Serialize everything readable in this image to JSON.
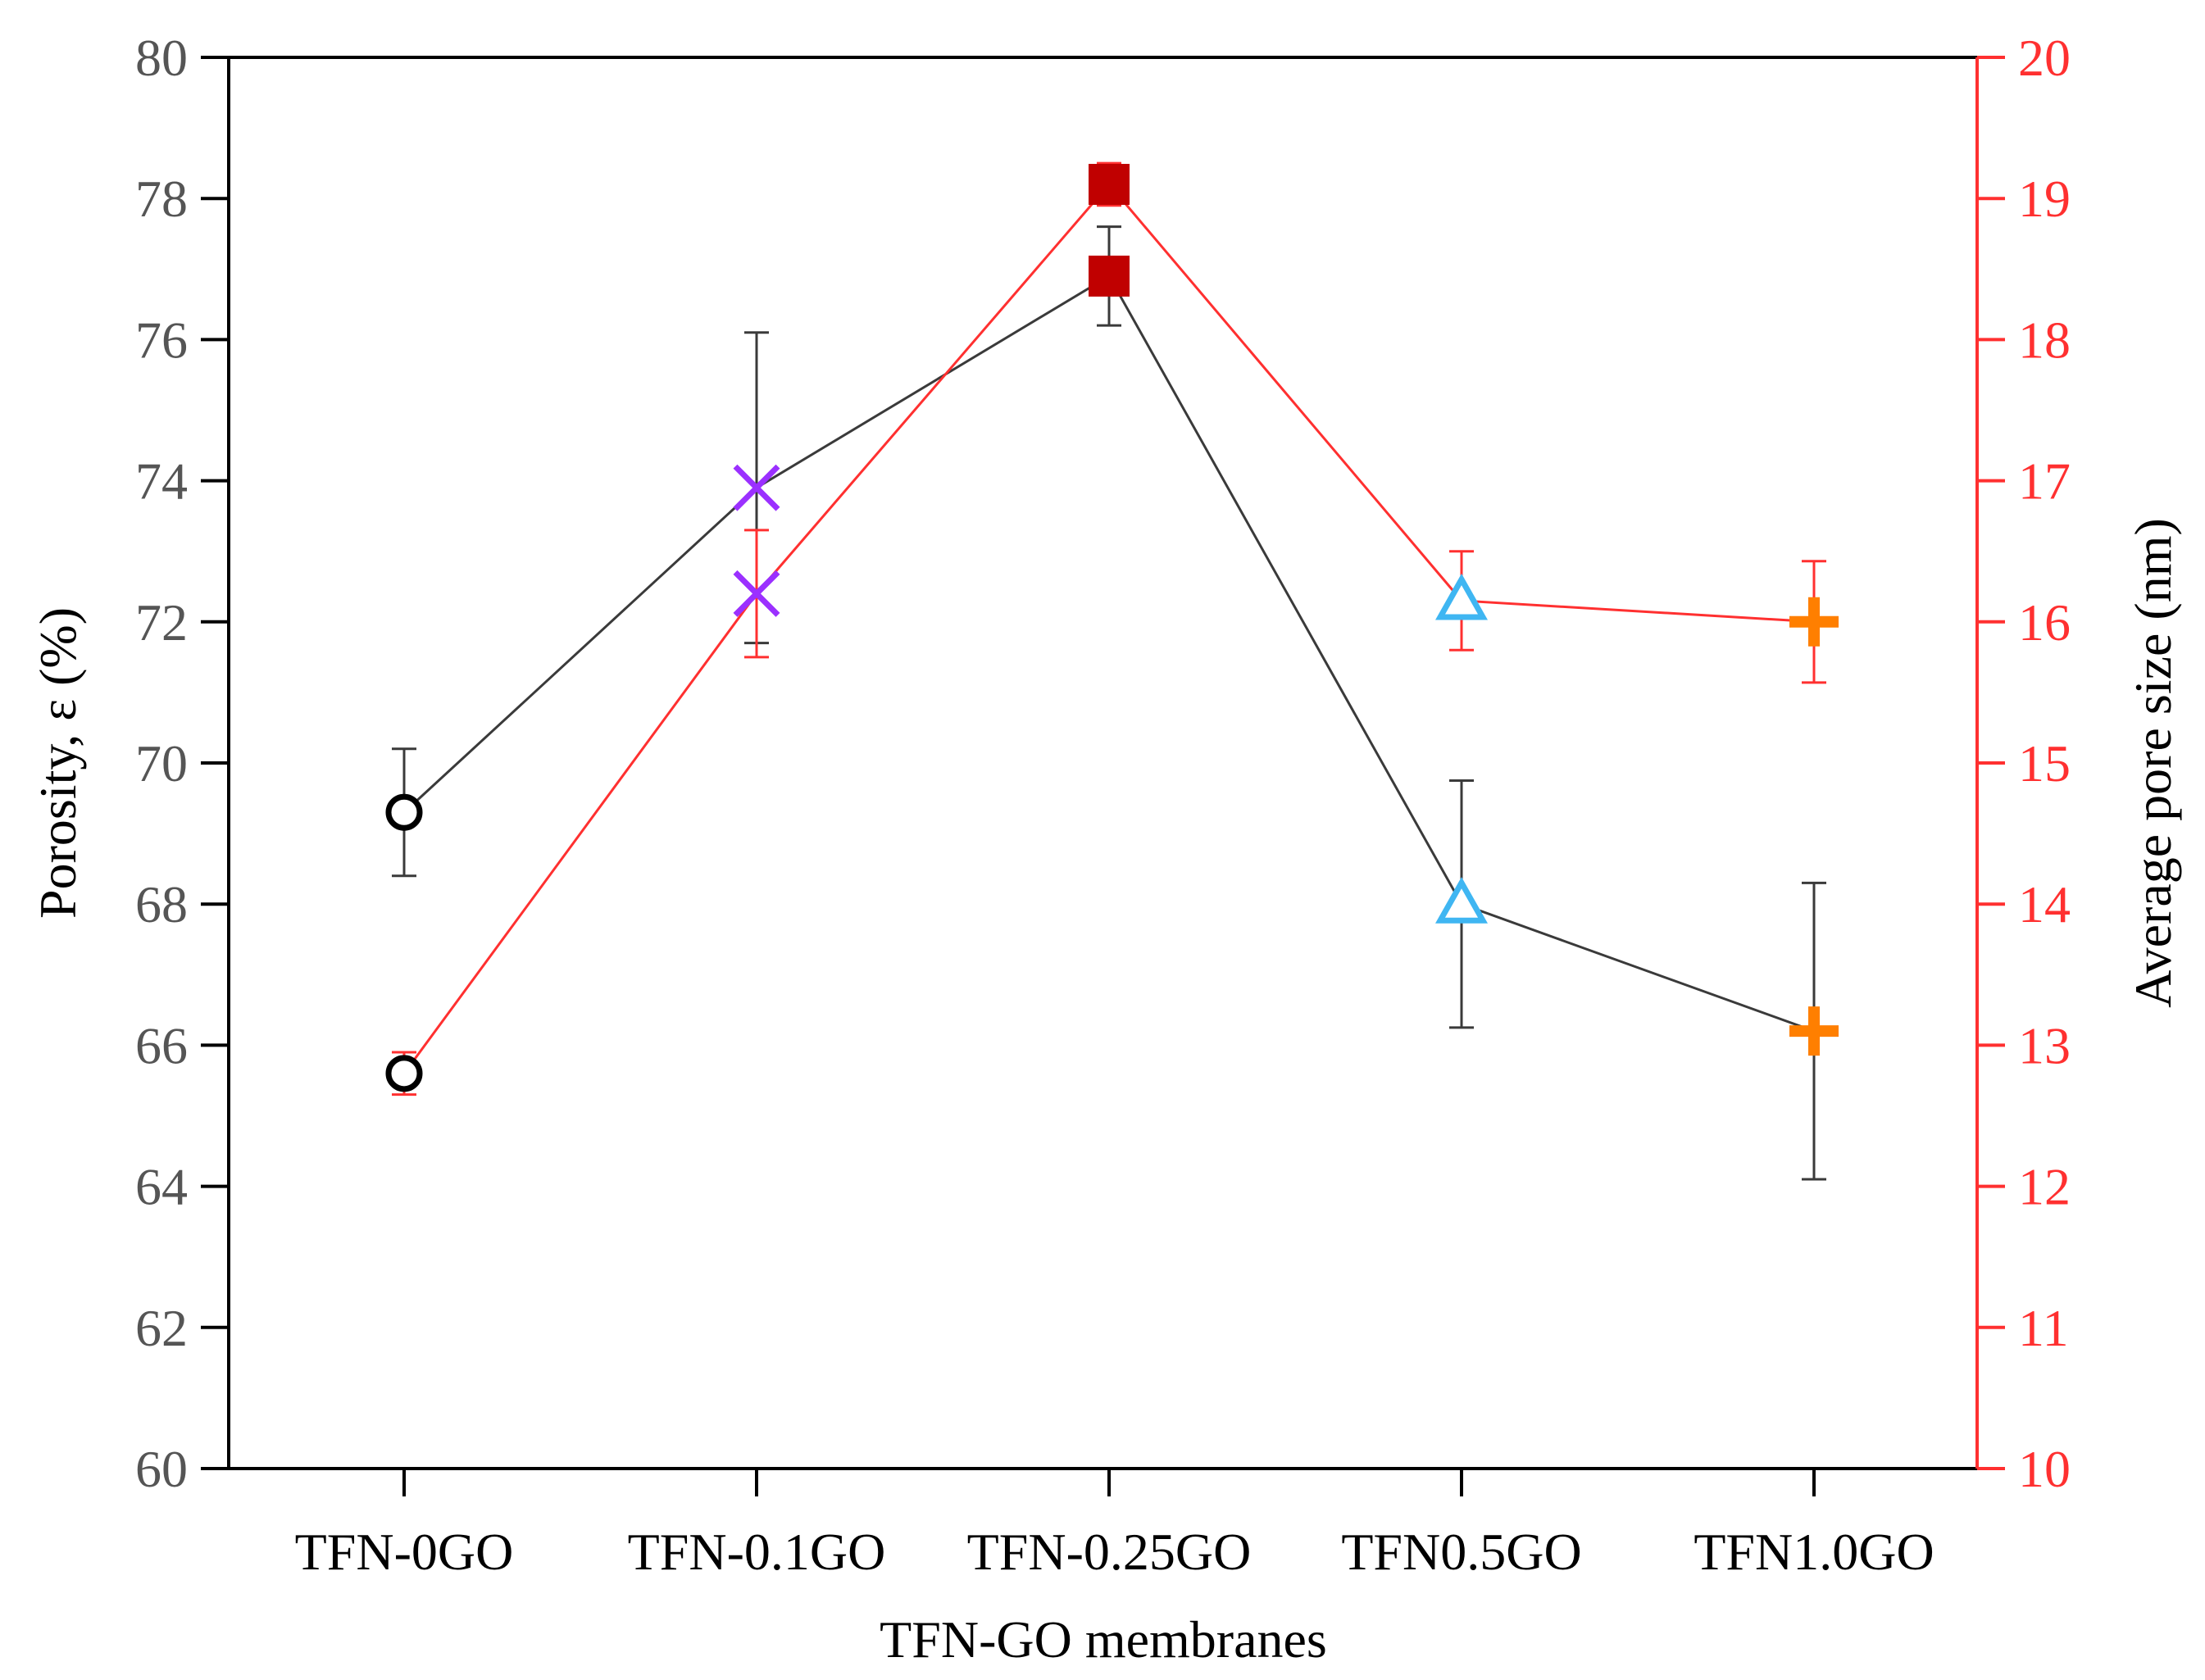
{
  "chart_data": {
    "type": "line",
    "title": "",
    "xlabel": "TFN-GO membranes",
    "ylabel_left": "Porosity, ε (%)",
    "ylabel_right": "Average pore size (nm)",
    "categories": [
      "TFN-0GO",
      "TFN-0.1GO",
      "TFN-0.25GO",
      "TFN0.5GO",
      "TFN1.0GO"
    ],
    "ylim_left": [
      60,
      80
    ],
    "ylim_right": [
      10,
      20
    ],
    "yticks_left": [
      "60",
      "62",
      "64",
      "66",
      "68",
      "70",
      "72",
      "74",
      "76",
      "78",
      "80"
    ],
    "yticks_right": [
      "10",
      "11",
      "12",
      "13",
      "14",
      "15",
      "16",
      "17",
      "18",
      "19",
      "20"
    ],
    "grid": false,
    "markers": [
      "circle",
      "x",
      "square",
      "triangle",
      "plus"
    ],
    "marker_colors": [
      "#000000",
      "#9b30ff",
      "#c00000",
      "#3fb6f2",
      "#ff7f00"
    ],
    "series": [
      {
        "name": "Porosity",
        "axis": "left",
        "color": "#3a3a3a",
        "values": [
          69.3,
          73.9,
          76.9,
          68.0,
          66.2
        ],
        "errors": [
          0.9,
          2.2,
          0.7,
          1.75,
          2.1
        ]
      },
      {
        "name": "Average pore size",
        "axis": "right",
        "color": "#ff3030",
        "values": [
          12.8,
          16.2,
          19.1,
          16.15,
          16.0
        ],
        "errors": [
          0.15,
          0.45,
          0.15,
          0.35,
          0.43
        ]
      }
    ]
  }
}
